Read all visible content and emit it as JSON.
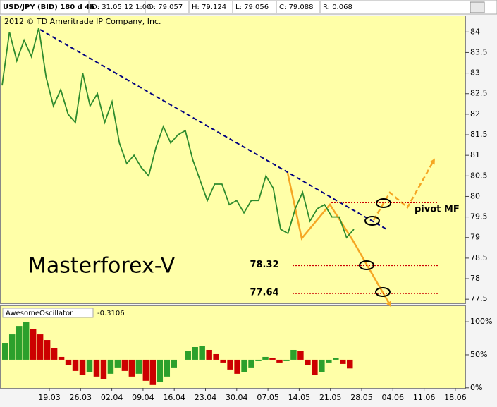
{
  "chart_data": [
    {
      "type": "line",
      "title": "USD/JPY (BID) 180 d 4h",
      "info": [
        "D: 31.05.12 1:00",
        "O: 79.057",
        "H: 79.124",
        "L: 79.056",
        "C: 79.088",
        "R: 0.068"
      ],
      "copyright": "2012 © TD Ameritrade IP Company, Inc.",
      "watermark": "Masterforex-V",
      "xtick_labels": [
        "19.03",
        "26.03",
        "02.04",
        "09.04",
        "16.04",
        "23.04",
        "30.04",
        "07.05",
        "14.05",
        "21.05",
        "28.05",
        "04.06",
        "11.06",
        "18.06"
      ],
      "series": [
        {
          "color": "#2e8b2e",
          "values": [
            82.7,
            84.0,
            83.3,
            83.8,
            83.4,
            84.1,
            82.9,
            82.2,
            82.6,
            82.0,
            81.8,
            83.0,
            82.2,
            82.5,
            81.8,
            82.3,
            81.3,
            80.8,
            81.0,
            80.7,
            80.5,
            81.2,
            81.7,
            81.3,
            81.5,
            81.6,
            80.9,
            80.4,
            79.9,
            80.3,
            80.3,
            79.8,
            79.9,
            79.6,
            79.9,
            79.9,
            80.5,
            80.2,
            79.2,
            79.1,
            79.7,
            80.1,
            79.4,
            79.7,
            79.8,
            79.5,
            79.5,
            79.0,
            79.2
          ]
        }
      ],
      "ylim": [
        77.4,
        84.4
      ],
      "yticks": [
        77.5,
        78,
        78.5,
        79,
        79.5,
        80,
        80.5,
        81,
        81.5,
        82,
        82.5,
        83,
        83.5,
        84
      ],
      "levels": [
        78.32,
        77.64
      ],
      "level_color": "#cc0000",
      "pivot": {
        "label": "pivot MF",
        "value": 79.85
      }
    },
    {
      "type": "bar",
      "title": "AwesomeOscillator",
      "series": [
        {
          "values": [
            0.6,
            0.9,
            1.2,
            1.35,
            1.1,
            0.9,
            0.7,
            0.4,
            0.1,
            -0.2,
            -0.4,
            -0.55,
            -0.45,
            -0.6,
            -0.7,
            -0.5,
            -0.3,
            -0.4,
            -0.6,
            -0.5,
            -0.75,
            -0.9,
            -0.8,
            -0.6,
            -0.3,
            0.0,
            0.3,
            0.45,
            0.5,
            0.35,
            0.2,
            -0.1,
            -0.35,
            -0.5,
            -0.45,
            -0.3,
            -0.05,
            0.1,
            0.05,
            -0.1,
            -0.05,
            0.35,
            0.3,
            -0.2,
            -0.55,
            -0.45,
            -0.1,
            0.05,
            -0.15,
            -0.3106
          ]
        }
      ],
      "up_color": "#2ca02c",
      "down_color": "#cc0000",
      "ylim": [
        -1.08,
        1.93
      ],
      "yticks": [
        {
          "value": -1,
          "label": "0%"
        },
        {
          "value": 0.175,
          "label": "50%"
        },
        {
          "value": 1.35,
          "label": "100%"
        }
      ]
    }
  ]
}
